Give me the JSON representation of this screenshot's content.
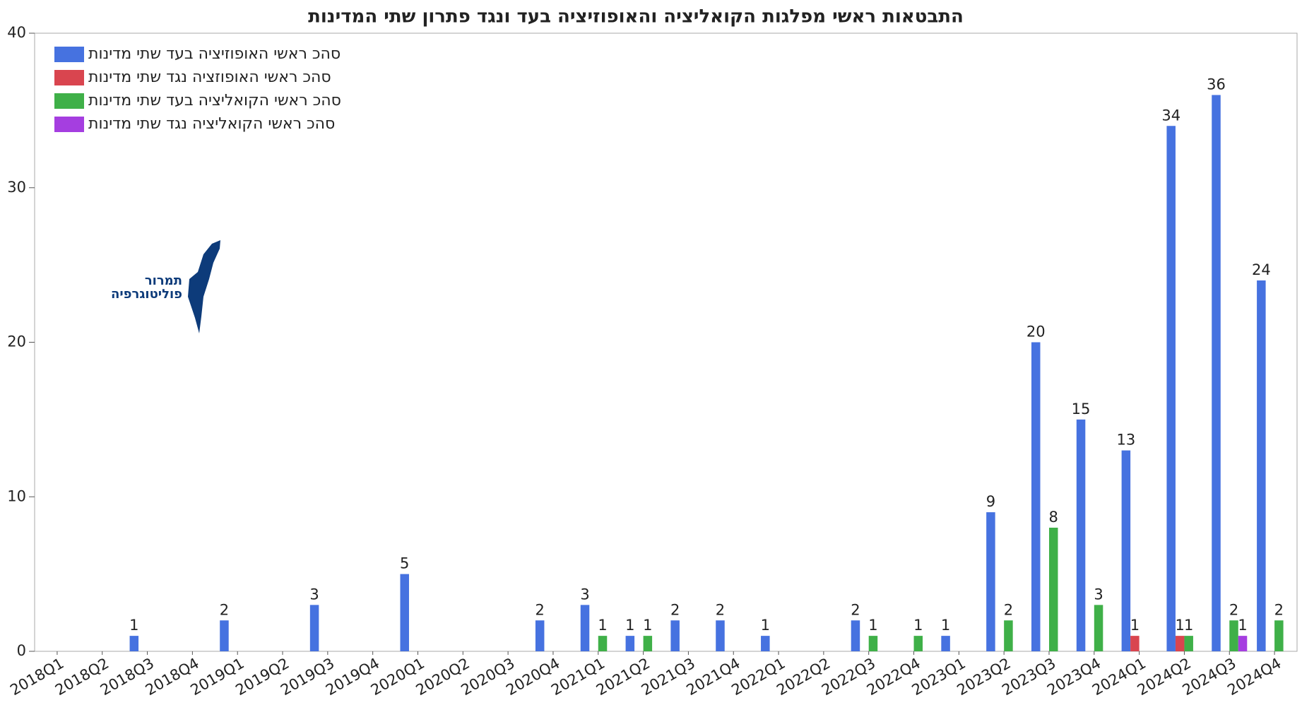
{
  "chart_data": {
    "type": "bar",
    "title": "התבטאות ראשי מפלגות הקואליציה והאופוזיציה בעד ונגד פתרון שתי המדינות",
    "logo": [
      "תמרור",
      "פוליטוגרפיה"
    ],
    "categories": [
      "2018Q1",
      "2018Q2",
      "2018Q3",
      "2018Q4",
      "2019Q1",
      "2019Q2",
      "2019Q3",
      "2019Q4",
      "2020Q1",
      "2020Q2",
      "2020Q3",
      "2020Q4",
      "2021Q1",
      "2021Q2",
      "2021Q3",
      "2021Q4",
      "2022Q1",
      "2022Q2",
      "2022Q3",
      "2022Q4",
      "2023Q1",
      "2023Q2",
      "2023Q3",
      "2023Q4",
      "2024Q1",
      "2024Q2",
      "2024Q3",
      "2024Q4"
    ],
    "series": [
      {
        "name": "סהכ ראשי האופוזיציה בעד שתי מדינות",
        "color": "#4672e0",
        "values": [
          null,
          null,
          1,
          null,
          2,
          null,
          3,
          null,
          5,
          null,
          null,
          2,
          3,
          1,
          2,
          2,
          1,
          null,
          2,
          null,
          1,
          9,
          20,
          15,
          13,
          34,
          36,
          24
        ]
      },
      {
        "name": "סהכ ראשי האופוזציה נגד שתי מדינות",
        "color": "#d9454f",
        "values": [
          null,
          null,
          null,
          null,
          null,
          null,
          null,
          null,
          null,
          null,
          null,
          null,
          null,
          null,
          null,
          null,
          null,
          null,
          null,
          null,
          null,
          null,
          null,
          null,
          1,
          1,
          null,
          null
        ]
      },
      {
        "name": "סהכ ראשי הקואליציה בעד שתי מדינות",
        "color": "#3fb048",
        "values": [
          null,
          null,
          null,
          null,
          null,
          null,
          null,
          null,
          null,
          null,
          null,
          null,
          1,
          1,
          null,
          null,
          null,
          null,
          1,
          1,
          null,
          2,
          8,
          3,
          null,
          1,
          2,
          2
        ]
      },
      {
        "name": "סהכ ראשי הקואליציה נגד שתי מדינות",
        "color": "#a53ee0",
        "values": [
          null,
          null,
          null,
          null,
          null,
          null,
          null,
          null,
          null,
          null,
          null,
          null,
          null,
          null,
          null,
          null,
          null,
          null,
          null,
          null,
          null,
          null,
          null,
          null,
          null,
          null,
          1,
          null
        ]
      }
    ],
    "ylim": [
      0,
      40
    ],
    "yticks": [
      0,
      10,
      20,
      30,
      40
    ],
    "legend": "upper left"
  }
}
